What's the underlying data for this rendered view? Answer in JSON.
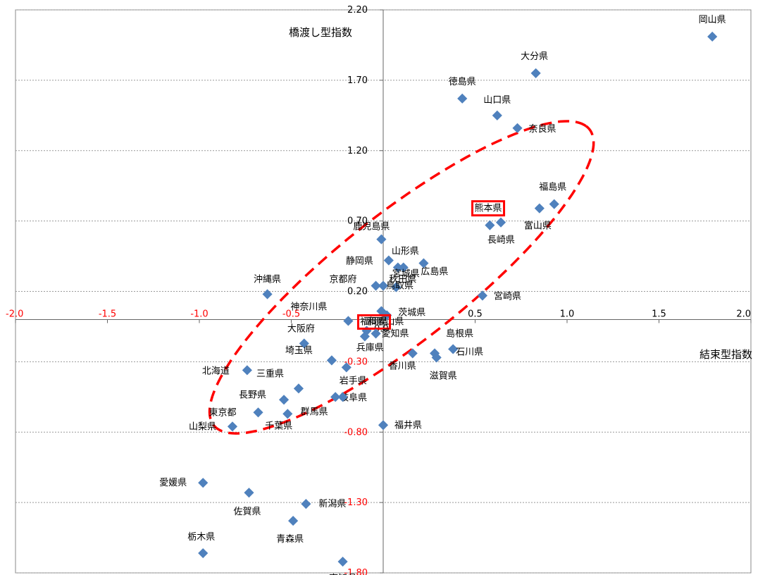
{
  "chart_data": {
    "type": "scatter",
    "xlabel": "結束型指数",
    "ylabel": "橋渡し型指数",
    "xlim": [
      -2.0,
      2.0
    ],
    "ylim": [
      -1.8,
      2.2
    ],
    "x_ticks": [
      "-2.0",
      "-1.5",
      "-1.0",
      "-0.5",
      "0.0",
      "0.5",
      "1.0",
      "1.5",
      "2.0"
    ],
    "y_ticks": [
      "2.20",
      "1.70",
      "1.20",
      "0.70",
      "0.20",
      "-0.30",
      "-0.80",
      "-1.30",
      "-1.80"
    ],
    "highlighted": [
      "熊本県",
      "福岡県"
    ],
    "colors": {
      "marker": "#4F81BD",
      "ellipse": "#FF0000",
      "negative_tick": "#FF0000",
      "highlight_box": "#FF0000"
    },
    "points": [
      {
        "name": "岡山県",
        "x": 1.79,
        "y": 2.01
      },
      {
        "name": "大分県",
        "x": 0.83,
        "y": 1.75
      },
      {
        "name": "徳島県",
        "x": 0.43,
        "y": 1.57
      },
      {
        "name": "山口県",
        "x": 0.62,
        "y": 1.45
      },
      {
        "name": "奈良県",
        "x": 0.73,
        "y": 1.36
      },
      {
        "name": "福島県",
        "x": 0.93,
        "y": 0.82
      },
      {
        "name": "富山県",
        "x": 0.85,
        "y": 0.79
      },
      {
        "name": "熊本県",
        "x": 0.64,
        "y": 0.69
      },
      {
        "name": "長崎県",
        "x": 0.58,
        "y": 0.67
      },
      {
        "name": "鹿児島県",
        "x": -0.01,
        "y": 0.57
      },
      {
        "name": "山形県",
        "x": 0.03,
        "y": 0.42
      },
      {
        "name": "静岡県",
        "x": 0.08,
        "y": 0.37
      },
      {
        "name": "宮城県",
        "x": 0.11,
        "y": 0.37
      },
      {
        "name": "広島県",
        "x": 0.22,
        "y": 0.4
      },
      {
        "name": "秋田県",
        "x": 0.07,
        "y": 0.23
      },
      {
        "name": "京都府",
        "x": -0.04,
        "y": 0.24
      },
      {
        "name": "鳥取県",
        "x": 0.0,
        "y": 0.24
      },
      {
        "name": "宮崎県",
        "x": 0.54,
        "y": 0.17
      },
      {
        "name": "沖縄県",
        "x": -0.63,
        "y": 0.18
      },
      {
        "name": "和歌山県",
        "x": -0.01,
        "y": 0.06
      },
      {
        "name": "茨城県",
        "x": 0.02,
        "y": 0.03
      },
      {
        "name": "神奈川県",
        "x": -0.19,
        "y": -0.01
      },
      {
        "name": "福岡県",
        "x": -0.09,
        "y": -0.08
      },
      {
        "name": "大阪府",
        "x": -0.1,
        "y": -0.12
      },
      {
        "name": "愛知県",
        "x": -0.04,
        "y": -0.1
      },
      {
        "name": "島根県",
        "x": 0.28,
        "y": -0.24
      },
      {
        "name": "石川県",
        "x": 0.38,
        "y": -0.21
      },
      {
        "name": "滋賀県",
        "x": 0.29,
        "y": -0.27
      },
      {
        "name": "香川県",
        "x": 0.16,
        "y": -0.24
      },
      {
        "name": "兵庫県",
        "x": -0.43,
        "y": -0.17
      },
      {
        "name": "埼玉県",
        "x": -0.28,
        "y": -0.29
      },
      {
        "name": "岩手県",
        "x": -0.2,
        "y": -0.34
      },
      {
        "name": "北海道",
        "x": -0.74,
        "y": -0.36
      },
      {
        "name": "三重県",
        "x": -0.46,
        "y": -0.49
      },
      {
        "name": "岐阜県",
        "x": -0.26,
        "y": -0.55
      },
      {
        "name": "長野県",
        "x": -0.54,
        "y": -0.57
      },
      {
        "name": "群馬県",
        "x": -0.22,
        "y": -0.55
      },
      {
        "name": "東京都",
        "x": -0.68,
        "y": -0.66
      },
      {
        "name": "千葉県",
        "x": -0.52,
        "y": -0.67
      },
      {
        "name": "山梨県",
        "x": -0.82,
        "y": -0.76
      },
      {
        "name": "福井県",
        "x": 0.0,
        "y": -0.75
      },
      {
        "name": "愛媛県",
        "x": -0.98,
        "y": -1.16
      },
      {
        "name": "佐賀県",
        "x": -0.73,
        "y": -1.23
      },
      {
        "name": "新潟県",
        "x": -0.42,
        "y": -1.31
      },
      {
        "name": "青森県",
        "x": -0.49,
        "y": -1.43
      },
      {
        "name": "栃木県",
        "x": -0.98,
        "y": -1.66
      },
      {
        "name": "高知県",
        "x": -0.22,
        "y": -1.72
      }
    ]
  }
}
